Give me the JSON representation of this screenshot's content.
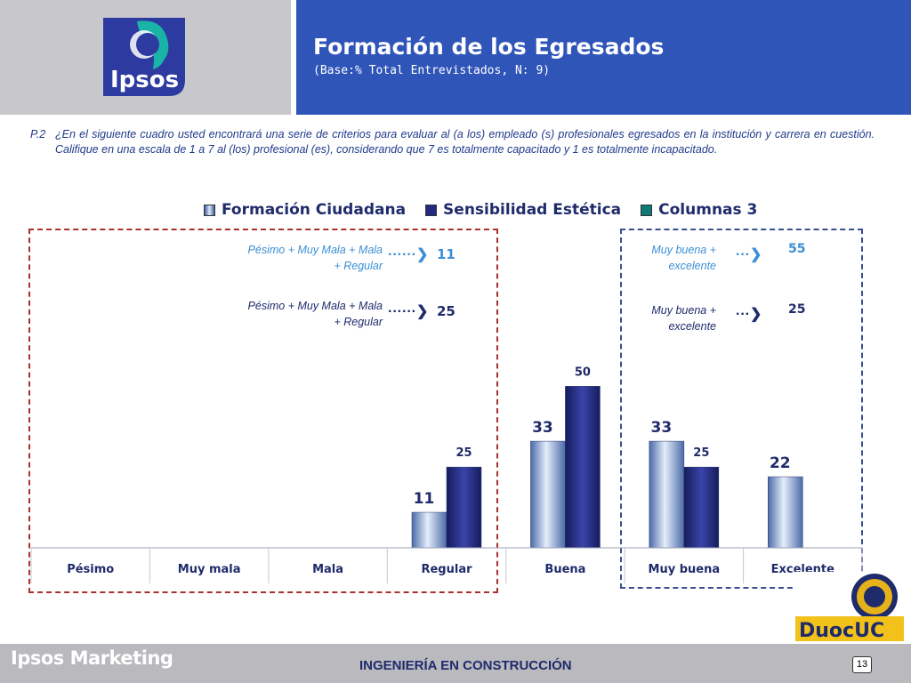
{
  "header": {
    "title": "Formación de los Egresados",
    "subtitle": "(Base:% Total Entrevistados, N: 9)",
    "logo_text": "Ipsos"
  },
  "question": {
    "number": "P.2",
    "text": "¿En el siguiente cuadro usted encontrará una serie de criterios para evaluar al (a los) empleado (s) profesionales egresados en la institución y carrera en cuestión. Califique en una escala de 1 a 7 al (los) profesional (es), considerando que 7 es totalmente capacitado y 1 es totalmente incapacitado."
  },
  "annotations": {
    "left_1": {
      "label_line1": "Pésimo + Muy Mala + Mala",
      "label_line2": "+ Regular",
      "value": "11",
      "color": "#3b8fd6"
    },
    "left_2": {
      "label_line1": "Pésimo + Muy Mala + Mala",
      "label_line2": "+ Regular",
      "value": "25",
      "color": "#1f2b6b"
    },
    "right_1": {
      "label_line1": "Muy buena +",
      "label_line2": "excelente",
      "value": "55",
      "color": "#3b8fd6"
    },
    "right_2": {
      "label_line1": "Muy buena +",
      "label_line2": "excelente",
      "value": "25",
      "color": "#1f2b6b"
    }
  },
  "chart_data": {
    "type": "bar",
    "categories": [
      "Pésimo",
      "Muy mala",
      "Mala",
      "Regular",
      "Buena",
      "Muy buena",
      "Excelente"
    ],
    "series": [
      {
        "name": "Formación Ciudadana",
        "values": [
          null,
          null,
          null,
          11,
          33,
          33,
          22
        ],
        "color": "#8fb3e0"
      },
      {
        "name": "Sensibilidad Estética",
        "values": [
          null,
          null,
          null,
          25,
          50,
          25,
          null
        ],
        "color": "#222a80"
      },
      {
        "name": "Columnas 3",
        "values": [
          null,
          null,
          null,
          null,
          null,
          null,
          null
        ],
        "color": "#0f7a78"
      }
    ],
    "ylim": [
      0,
      60
    ],
    "legend": "top",
    "grid": false
  },
  "footer": {
    "brand": "Ipsos Marketing",
    "program": "INGENIERÍA EN CONSTRUCCIÓN",
    "page": "13",
    "partner_logo": "DuocUC"
  }
}
